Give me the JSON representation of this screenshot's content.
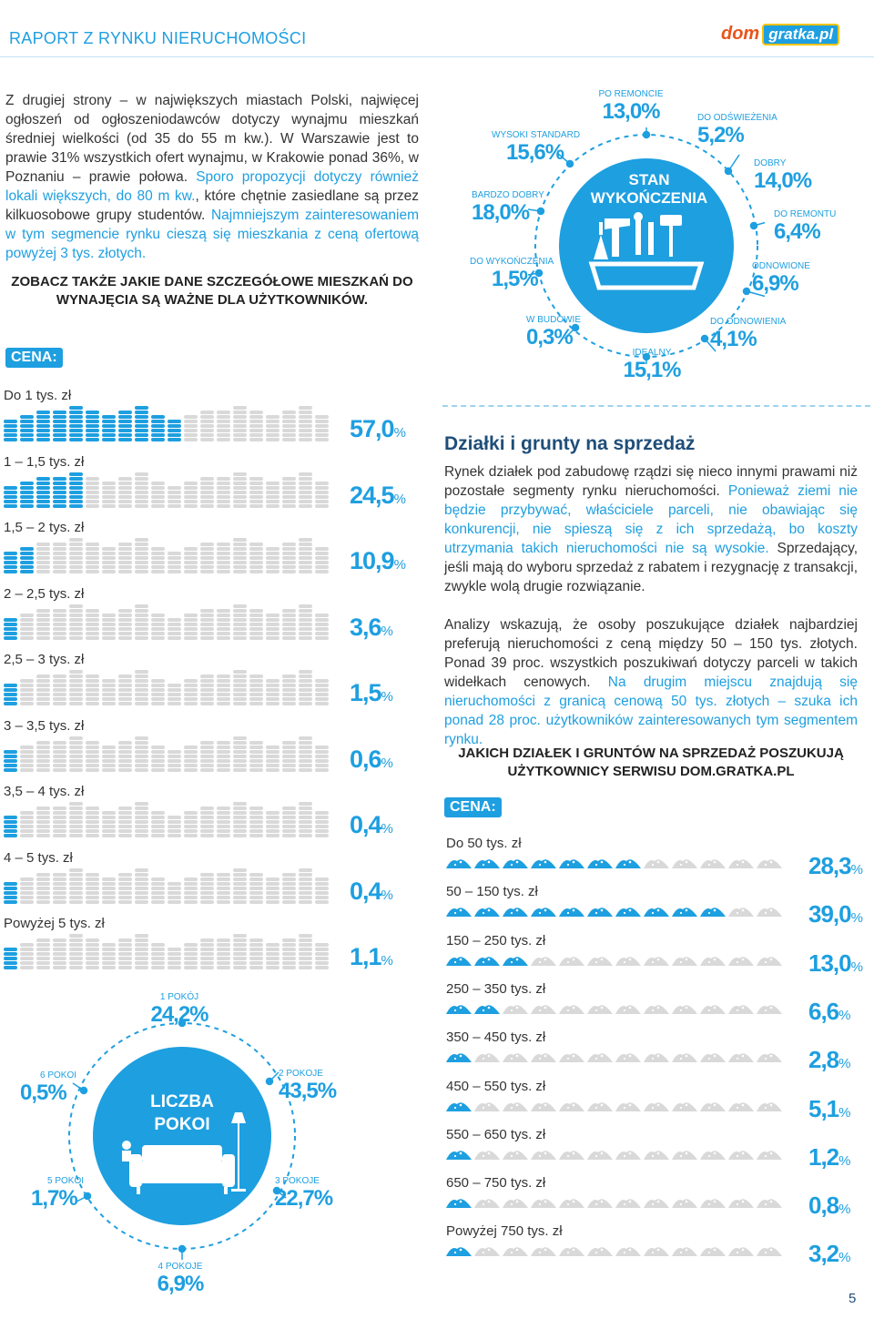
{
  "header": {
    "title": "RAPORT Z RYNKU NIERUCHOMOŚCI",
    "logo_dom": "dom",
    "logo_gratka": "gratka.pl"
  },
  "intro": {
    "text_plain_1": "Z drugiej strony – w największych miastach Polski, najwięcej ogłoszeń od ogłoszeniodawców dotyczy wynajmu mieszkań średniej wielkości (od 35 do 55 m kw.). W Warszawie jest to prawie 31% wszystkich ofert wynajmu, w Krakowie ponad 36%, w Poznaniu – prawie połowa. ",
    "text_hl_1": "Sporo propozycji dotyczy również lokali większych, do 80 m kw.",
    "text_plain_2": ", które chętnie zasiedlane są przez kilkuosobowe grupy studentów. ",
    "text_hl_2": "Najmniejszym zainteresowaniem w tym segmencie rynku cieszą się mieszkania z ceną ofertową powyżej 3 tys. złotych."
  },
  "rental_heading": "ZOBACZ TAKŻE JAKIE DANE SZCZEGÓŁOWE MIESZKAŃ DO WYNAJĘCIA SĄ WAŻNE DLA UŻYTKOWNIKÓW.",
  "rental_price": {
    "badge": "CENA:",
    "rows": [
      {
        "label": "Do 1 tys. zł",
        "value": "57,0",
        "fraction": 0.57
      },
      {
        "label": "1 – 1,5 tys. zł",
        "value": "24,5",
        "fraction": 0.245
      },
      {
        "label": "1,5 – 2 tys. zł",
        "value": "10,9",
        "fraction": 0.109
      },
      {
        "label": "2 – 2,5 tys. zł",
        "value": "3,6",
        "fraction": 0.036
      },
      {
        "label": "2,5 – 3 tys. zł",
        "value": "1,5",
        "fraction": 0.015
      },
      {
        "label": "3 – 3,5 tys. zł",
        "value": "0,6",
        "fraction": 0.006
      },
      {
        "label": "3,5 – 4 tys. zł",
        "value": "0,4",
        "fraction": 0.004
      },
      {
        "label": "4 – 5 tys. zł",
        "value": "0,4",
        "fraction": 0.004
      },
      {
        "label": "Powyżej 5 tys. zł",
        "value": "1,1",
        "fraction": 0.011
      }
    ],
    "percent_sign": "%"
  },
  "condition": {
    "center_line1": "STAN",
    "center_line2": "WYKOŃCZENIA",
    "items": [
      {
        "key": "po_remoncie",
        "label": "PO REMONCIE",
        "value": "13,0%"
      },
      {
        "key": "do_odswiezenia",
        "label": "DO ODŚWIEŻENIA",
        "value": "5,2%"
      },
      {
        "key": "dobry",
        "label": "DOBRY",
        "value": "14,0%"
      },
      {
        "key": "do_remontu",
        "label": "DO REMONTU",
        "value": "6,4%"
      },
      {
        "key": "odnowione",
        "label": "ODNOWIONE",
        "value": "6,9%"
      },
      {
        "key": "do_odnowienia",
        "label": "DO ODNOWIENIA",
        "value": "4,1%"
      },
      {
        "key": "idealny",
        "label": "IDEALNY",
        "value": "15,1%"
      },
      {
        "key": "w_budowie",
        "label": "W BUDOWIE",
        "value": "0,3%"
      },
      {
        "key": "do_wykonczenia",
        "label": "DO WYKOŃCZENIA",
        "value": "1,5%"
      },
      {
        "key": "bardzo_dobry",
        "label": "BARDZO DOBRY",
        "value": "18,0%"
      },
      {
        "key": "wysoki_standard",
        "label": "WYSOKI STANDARD",
        "value": "15,6%"
      }
    ]
  },
  "rooms": {
    "center_line1": "LICZBA",
    "center_line2": "POKOI",
    "items": [
      {
        "key": "r1",
        "label": "1 POKÓJ",
        "value": "24,2%"
      },
      {
        "key": "r2",
        "label": "2 POKOJE",
        "value": "43,5%"
      },
      {
        "key": "r3",
        "label": "3 POKOJE",
        "value": "22,7%"
      },
      {
        "key": "r4",
        "label": "4 POKOJE",
        "value": "6,9%"
      },
      {
        "key": "r5",
        "label": "5 POKOI",
        "value": "1,7%"
      },
      {
        "key": "r6",
        "label": "6 POKOI",
        "value": "0,5%"
      }
    ]
  },
  "plots": {
    "title": "Działki i grunty na sprzedaż",
    "para1_plain": "Rynek działek pod zabudowę rządzi się nieco innymi prawami niż pozostałe segmenty rynku nieruchomości. ",
    "para1_hl": "Ponieważ ziemi nie będzie przybywać, właściciele parceli, nie obawiając się konkurencji, nie spieszą się z ich sprzedażą, bo koszty utrzymania takich nieruchomości nie są wysokie.",
    "para1_tail": " Sprzedający, jeśli mają do wyboru sprzedaż z rabatem i rezygnację z transakcji, zwykle wolą drugie rozwiązanie.",
    "para2_plain": "Analizy wskazują, że osoby poszukujące działek najbardziej preferują nieruchomości z ceną między 50 – 150 tys. złotych. Ponad 39 proc. wszystkich poszukiwań dotyczy parceli w takich widełkach cenowych. ",
    "para2_hl": "Na drugim miejscu znajdują się nieruchomości z granicą cenową 50 tys. złotych – szuka ich ponad 28 proc. użytkowników zainteresowanych tym segmentem rynku.",
    "heading": "JAKICH DZIAŁEK I GRUNTÓW NA SPRZEDAŻ POSZUKUJĄ UŻYTKOWNICY SERWISU DOM.GRATKA.PL",
    "badge": "CENA:",
    "rows": [
      {
        "label": "Do 50 tys. zł",
        "value": "28,3",
        "fraction": 0.283
      },
      {
        "label": "50 – 150 tys. zł",
        "value": "39,0",
        "fraction": 0.39
      },
      {
        "label": "150 – 250 tys. zł",
        "value": "13,0",
        "fraction": 0.13
      },
      {
        "label": "250 – 350 tys. zł",
        "value": "6,6",
        "fraction": 0.066
      },
      {
        "label": "350 – 450 tys. zł",
        "value": "2,8",
        "fraction": 0.028
      },
      {
        "label": "450 – 550 tys. zł",
        "value": "5,1",
        "fraction": 0.051
      },
      {
        "label": "550 – 650 tys. zł",
        "value": "1,2",
        "fraction": 0.012
      },
      {
        "label": "650 – 750 tys. zł",
        "value": "0,8",
        "fraction": 0.008
      },
      {
        "label": "Powyżej 750 tys. zł",
        "value": "3,2",
        "fraction": 0.032
      }
    ],
    "percent_sign": "%"
  },
  "page_number": "5",
  "colors": {
    "accent": "#1e9fe0",
    "dark": "#1f4e79",
    "inactive": "#d9d9d9"
  }
}
